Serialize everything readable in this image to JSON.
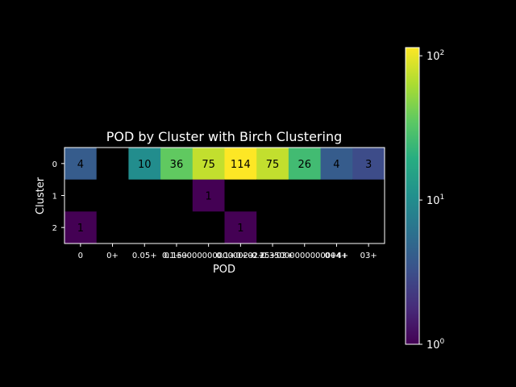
{
  "chart_data": {
    "type": "heatmap",
    "title": "POD by Cluster with Birch Clustering",
    "xlabel": "POD",
    "ylabel": "Cluster",
    "x_categories": [
      "0",
      "0+",
      "0.05+",
      "0.15+",
      "0.150000000000002+",
      "0.2+",
      "0.25+",
      "0.35+",
      "0.4+",
      "0.4+03+"
    ],
    "x_tick_labels": [
      "0",
      "0+",
      "0.05+",
      "0.15+",
      "0.1+0000000000002+",
      "0.1+0+02+",
      "0.25+03+",
      "0.35000000000004+",
      "0+4+",
      "03+"
    ],
    "y_categories": [
      "0",
      "1",
      "2"
    ],
    "values": [
      [
        4,
        null,
        10,
        36,
        75,
        114,
        75,
        26,
        4,
        3
      ],
      [
        null,
        null,
        null,
        null,
        1,
        null,
        null,
        null,
        null,
        null
      ],
      [
        1,
        null,
        null,
        null,
        null,
        1,
        null,
        null,
        null,
        null
      ]
    ],
    "cell_labels": [
      [
        "4",
        "",
        "10",
        "36",
        "75",
        "114",
        "75",
        "26",
        "4",
        "3"
      ],
      [
        "",
        "",
        "",
        "",
        "1",
        "",
        "",
        "",
        "",
        ""
      ],
      [
        "1",
        "",
        "",
        "",
        "",
        "1",
        "",
        "",
        "",
        ""
      ]
    ],
    "colormap": "viridis",
    "color_scale": "log",
    "color_range": [
      1,
      114
    ],
    "colorbar": {
      "position": "right",
      "ticks": [
        {
          "value": 1,
          "base": "10",
          "exp": "0"
        },
        {
          "value": 10,
          "base": "10",
          "exp": "1"
        },
        {
          "value": 100,
          "base": "10",
          "exp": "2"
        }
      ]
    },
    "background": "#000000",
    "text_color": "#ffffff"
  }
}
